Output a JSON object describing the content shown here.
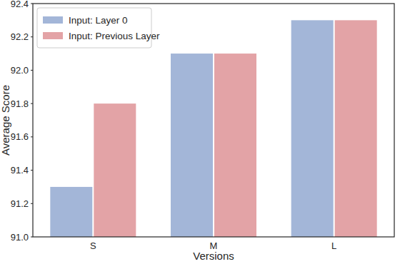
{
  "chart_data": {
    "type": "bar",
    "x_label": "Versions",
    "y_label": "Average Score",
    "categories": [
      "S",
      "M",
      "L"
    ],
    "series": [
      {
        "name": "Input: Layer 0",
        "color": "#a3b6d8",
        "values": [
          91.3,
          92.1,
          92.3
        ]
      },
      {
        "name": "Input: Previous Layer",
        "color": "#e3a3a6",
        "values": [
          91.8,
          92.1,
          92.3
        ]
      }
    ],
    "ylim": [
      91.0,
      92.4
    ],
    "yticks": [
      {
        "value": 91.0,
        "label": "91.0"
      },
      91.2,
      91.4,
      91.6,
      91.8,
      {
        "value": 92.0,
        "label": "92.0"
      },
      92.2,
      92.4
    ],
    "grid": false,
    "legend": "upper left"
  }
}
